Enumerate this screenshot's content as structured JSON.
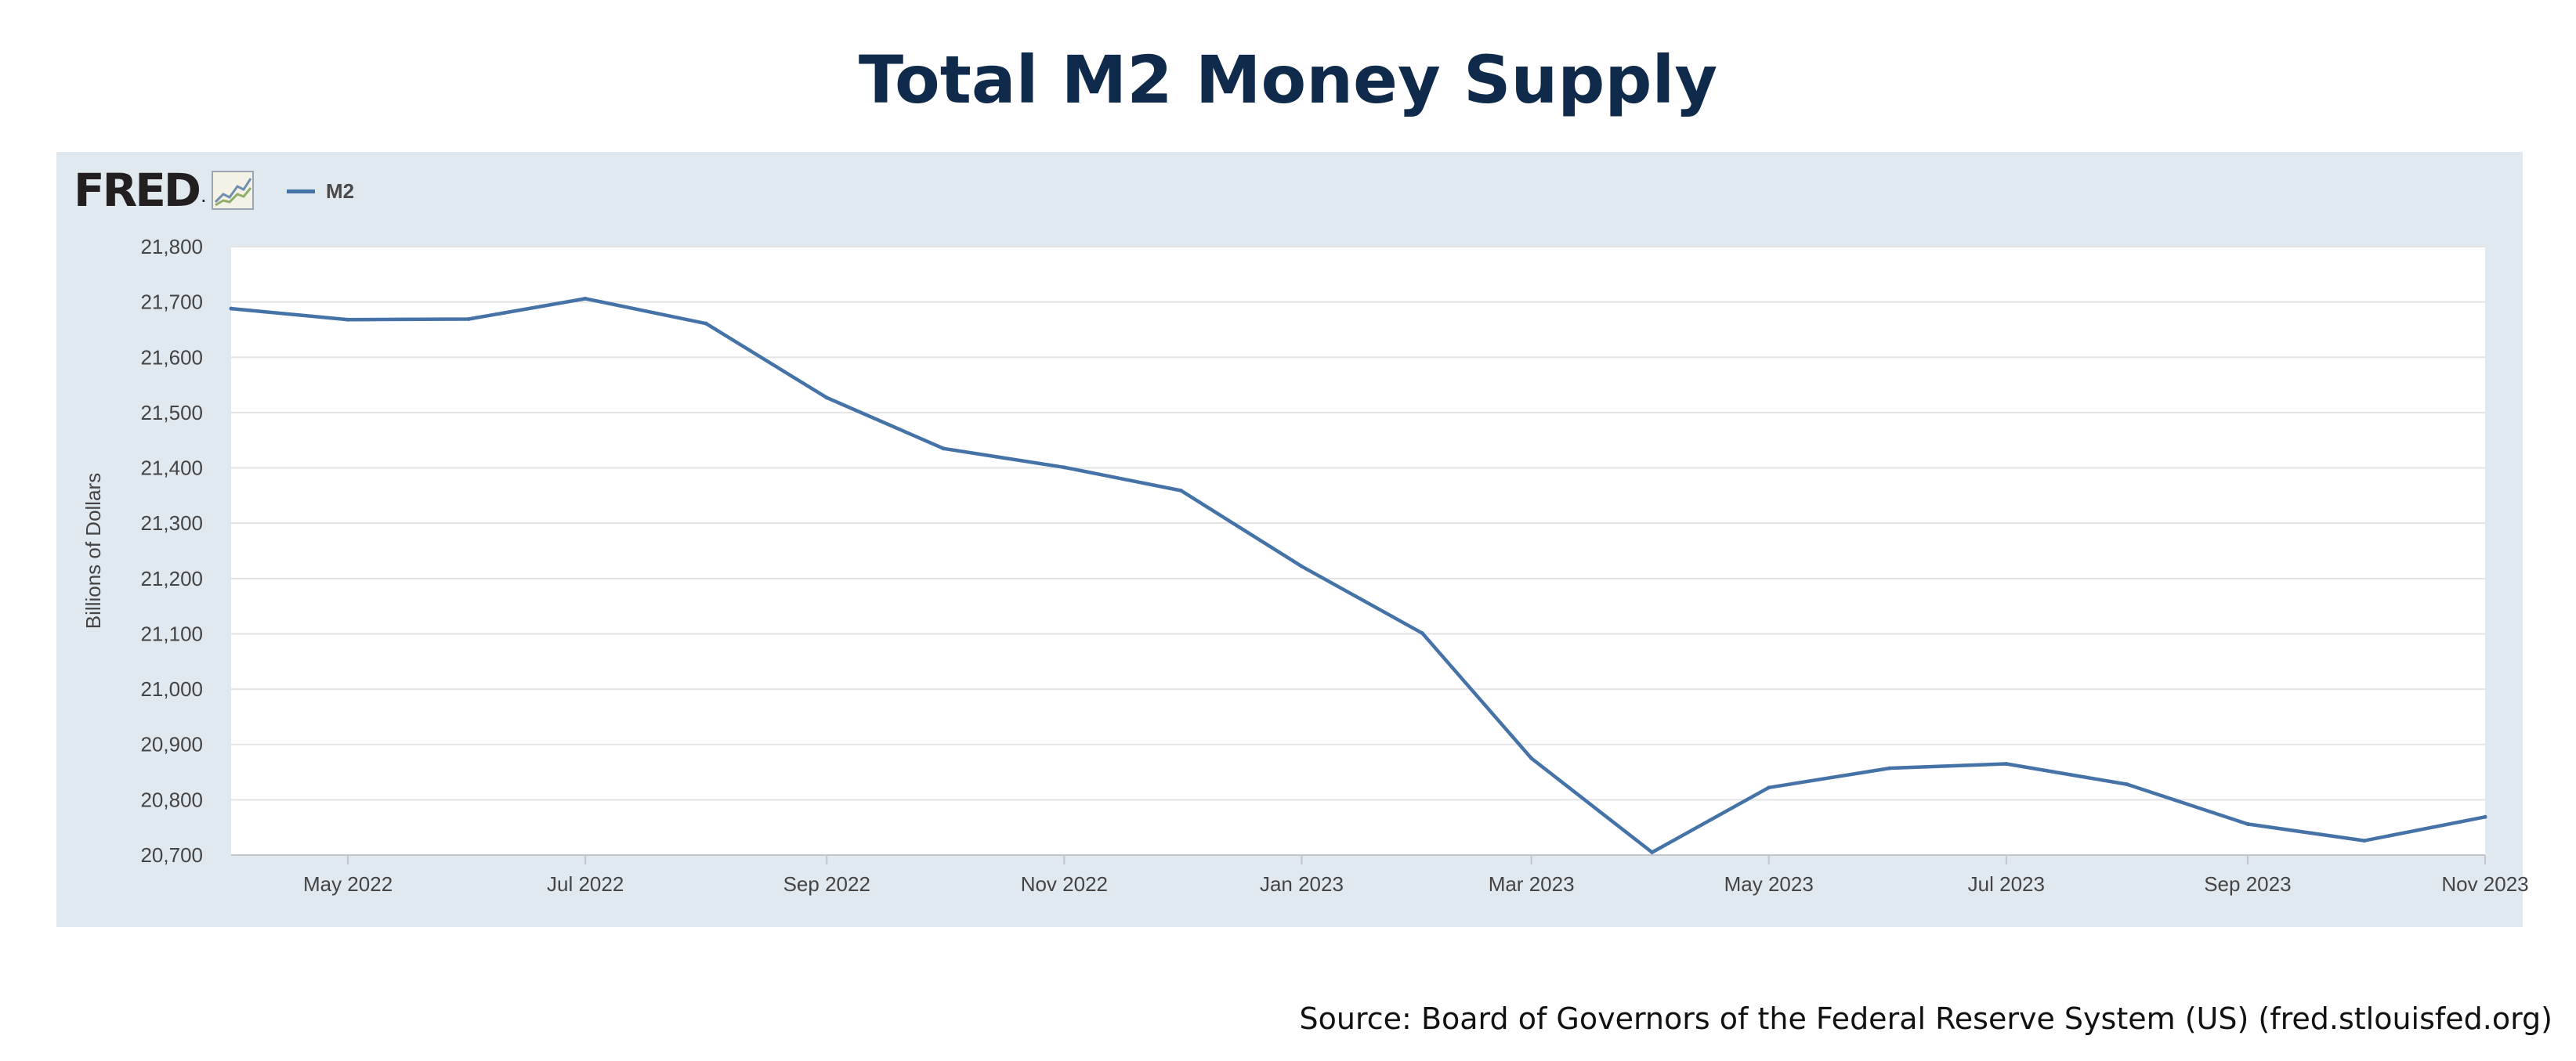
{
  "page": {
    "title": "Total M2 Money Supply",
    "source": "Source: Board of Governors of the Federal Reserve System (US) (fred.stlouisfed.org)"
  },
  "logo": {
    "text": "FRED",
    "mark": "."
  },
  "legend": {
    "label": "M2",
    "color": "#4572a7"
  },
  "colors": {
    "title": "#0f2a4a",
    "frame": "#e1e9f0",
    "plot_bg": "#ffffff",
    "grid": "#e3e3e3",
    "line": "#4572a7",
    "tick_text": "#444444"
  },
  "chart_data": {
    "type": "line",
    "title": "",
    "xlabel": "",
    "ylabel": "Billions of Dollars",
    "ylim": [
      20700,
      21800
    ],
    "yticks": [
      20700,
      20800,
      20900,
      21000,
      21100,
      21200,
      21300,
      21400,
      21500,
      21600,
      21700,
      21800
    ],
    "ytick_labels": [
      "20,700",
      "20,800",
      "20,900",
      "21,000",
      "21,100",
      "21,200",
      "21,300",
      "21,400",
      "21,500",
      "21,600",
      "21,700",
      "21,800"
    ],
    "xlim": [
      "2022-04-01",
      "2023-11-01"
    ],
    "xticks": [
      "2022-05-01",
      "2022-07-01",
      "2022-09-01",
      "2022-11-01",
      "2023-01-01",
      "2023-03-01",
      "2023-05-01",
      "2023-07-01",
      "2023-09-01",
      "2023-11-01"
    ],
    "xtick_labels": [
      "May 2022",
      "Jul 2022",
      "Sep 2022",
      "Nov 2022",
      "Jan 2023",
      "Mar 2023",
      "May 2023",
      "Jul 2023",
      "Sep 2023",
      "Nov 2023"
    ],
    "grid": true,
    "legend": "top-left",
    "series": [
      {
        "name": "M2",
        "x": [
          "2022-04-01",
          "2022-05-01",
          "2022-06-01",
          "2022-07-01",
          "2022-08-01",
          "2022-09-01",
          "2022-10-01",
          "2022-11-01",
          "2022-12-01",
          "2023-01-01",
          "2023-02-01",
          "2023-03-01",
          "2023-04-01",
          "2023-05-01",
          "2023-06-01",
          "2023-07-01",
          "2023-08-01",
          "2023-09-01",
          "2023-10-01",
          "2023-11-01"
        ],
        "values": [
          21688,
          21668,
          21669,
          21706,
          21661,
          21527,
          21435,
          21401,
          21359,
          21222,
          21101,
          20875,
          20705,
          20822,
          20857,
          20865,
          20828,
          20756,
          20726,
          20769
        ]
      }
    ]
  }
}
